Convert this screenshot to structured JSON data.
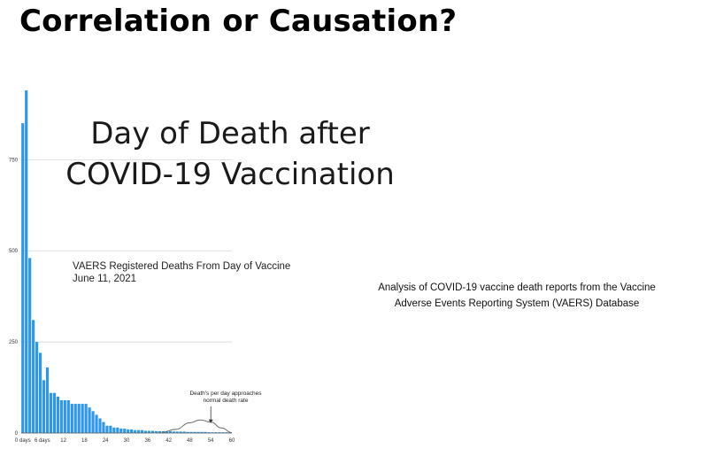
{
  "slide": {
    "title": "Correlation or Causation?",
    "description_lines": [
      "Analysis of COVID-19 vaccine death reports from the Vaccine",
      "Adverse Events Reporting System (VAERS) Database"
    ]
  },
  "chart_data": {
    "type": "bar",
    "title_lines": [
      "Day of Death after",
      "COVID-19 Vaccination"
    ],
    "subtitle_lines": [
      "VAERS Registered Deaths From Day of Vaccine",
      "June 11, 2021"
    ],
    "xlabel": "",
    "ylabel": "",
    "ylim": [
      0,
      950
    ],
    "yticks": [
      {
        "value": 0,
        "label": "0"
      },
      {
        "value": 250,
        "label": "250"
      },
      {
        "value": 500,
        "label": "500"
      },
      {
        "value": 750,
        "label": "750"
      }
    ],
    "xlim": [
      0,
      60
    ],
    "xticks": [
      {
        "value": 0,
        "label": "0 days"
      },
      {
        "value": 6,
        "label": "6 days"
      },
      {
        "value": 12,
        "label": "12"
      },
      {
        "value": 18,
        "label": "18"
      },
      {
        "value": 24,
        "label": "24"
      },
      {
        "value": 30,
        "label": "30"
      },
      {
        "value": 36,
        "label": "36"
      },
      {
        "value": 42,
        "label": "42"
      },
      {
        "value": 48,
        "label": "48"
      },
      {
        "value": 54,
        "label": "54"
      },
      {
        "value": 60,
        "label": "60"
      }
    ],
    "grid": true,
    "bar_color": "#2e97e8",
    "x": [
      0,
      1,
      2,
      3,
      4,
      5,
      6,
      7,
      8,
      9,
      10,
      11,
      12,
      13,
      14,
      15,
      16,
      17,
      18,
      19,
      20,
      21,
      22,
      23,
      24,
      25,
      26,
      27,
      28,
      29,
      30,
      31,
      32,
      33,
      34,
      35,
      36,
      37,
      38,
      39,
      40,
      41,
      42,
      43,
      44,
      45,
      46,
      47,
      48,
      49,
      50,
      51,
      52,
      53,
      54,
      55,
      56,
      57,
      58,
      59
    ],
    "values": [
      850,
      940,
      480,
      310,
      250,
      220,
      145,
      180,
      110,
      110,
      100,
      90,
      90,
      90,
      80,
      80,
      80,
      80,
      80,
      70,
      60,
      50,
      40,
      30,
      20,
      20,
      15,
      15,
      12,
      12,
      10,
      10,
      8,
      8,
      8,
      6,
      6,
      6,
      5,
      5,
      5,
      5,
      5,
      4,
      4,
      4,
      4,
      3,
      3,
      3,
      3,
      3,
      3,
      2,
      2,
      2,
      2,
      2,
      2,
      2
    ],
    "annotation": {
      "text_lines": [
        "Death's per day approaches",
        "normal death rate"
      ],
      "arrow_at": {
        "x": 54,
        "y": 25
      }
    },
    "curve": [
      [
        40,
        2
      ],
      [
        44,
        10
      ],
      [
        48,
        28
      ],
      [
        51,
        36
      ],
      [
        54,
        30
      ],
      [
        57,
        14
      ],
      [
        60,
        1
      ]
    ]
  }
}
